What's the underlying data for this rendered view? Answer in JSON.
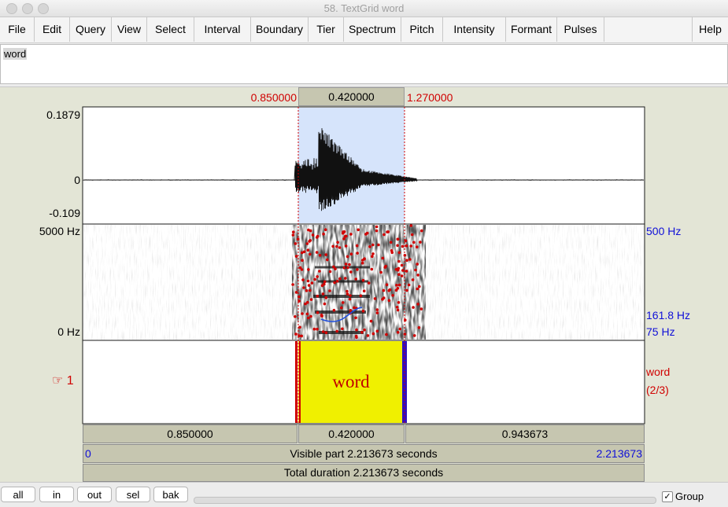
{
  "window": {
    "title": "58. TextGrid word"
  },
  "menubar": {
    "items": [
      "File",
      "Edit",
      "Query",
      "View",
      "Select",
      "Interval",
      "Boundary",
      "Tier",
      "Spectrum",
      "Pitch",
      "Intensity",
      "Formant",
      "Pulses"
    ],
    "help": "Help"
  },
  "text_area": {
    "value": "word"
  },
  "selection": {
    "start": "0.850000",
    "duration": "0.420000",
    "end": "1.270000"
  },
  "waveform": {
    "ymax": "0.1879",
    "yzero": "0",
    "ymin": "-0.109"
  },
  "spectrogram": {
    "fmax": "5000 Hz",
    "fmin": "0 Hz",
    "pitch_top": "500 Hz",
    "pitch_value": "161.8 Hz",
    "pitch_bottom": "75 Hz"
  },
  "tier": {
    "number": "1",
    "pointer_glyph": "☞",
    "interval_label": "word",
    "name": "word",
    "count": "(2/3)"
  },
  "bottom_bars": {
    "left": "0.850000",
    "middle": "0.420000",
    "right": "0.943673",
    "visible_start": "0",
    "visible_label": "Visible part 2.213673 seconds",
    "visible_end": "2.213673",
    "total_label": "Total duration 2.213673 seconds"
  },
  "buttons": {
    "all": "all",
    "in": "in",
    "out": "out",
    "sel": "sel",
    "bak": "bak"
  },
  "group_checkbox": {
    "label": "Group",
    "checked": true
  },
  "colors": {
    "selection": "#d6e4fb",
    "interval": "#f0f000",
    "cursor": "#d00000",
    "boundary": "#3010c0",
    "pitch": "#1f4fe0"
  }
}
